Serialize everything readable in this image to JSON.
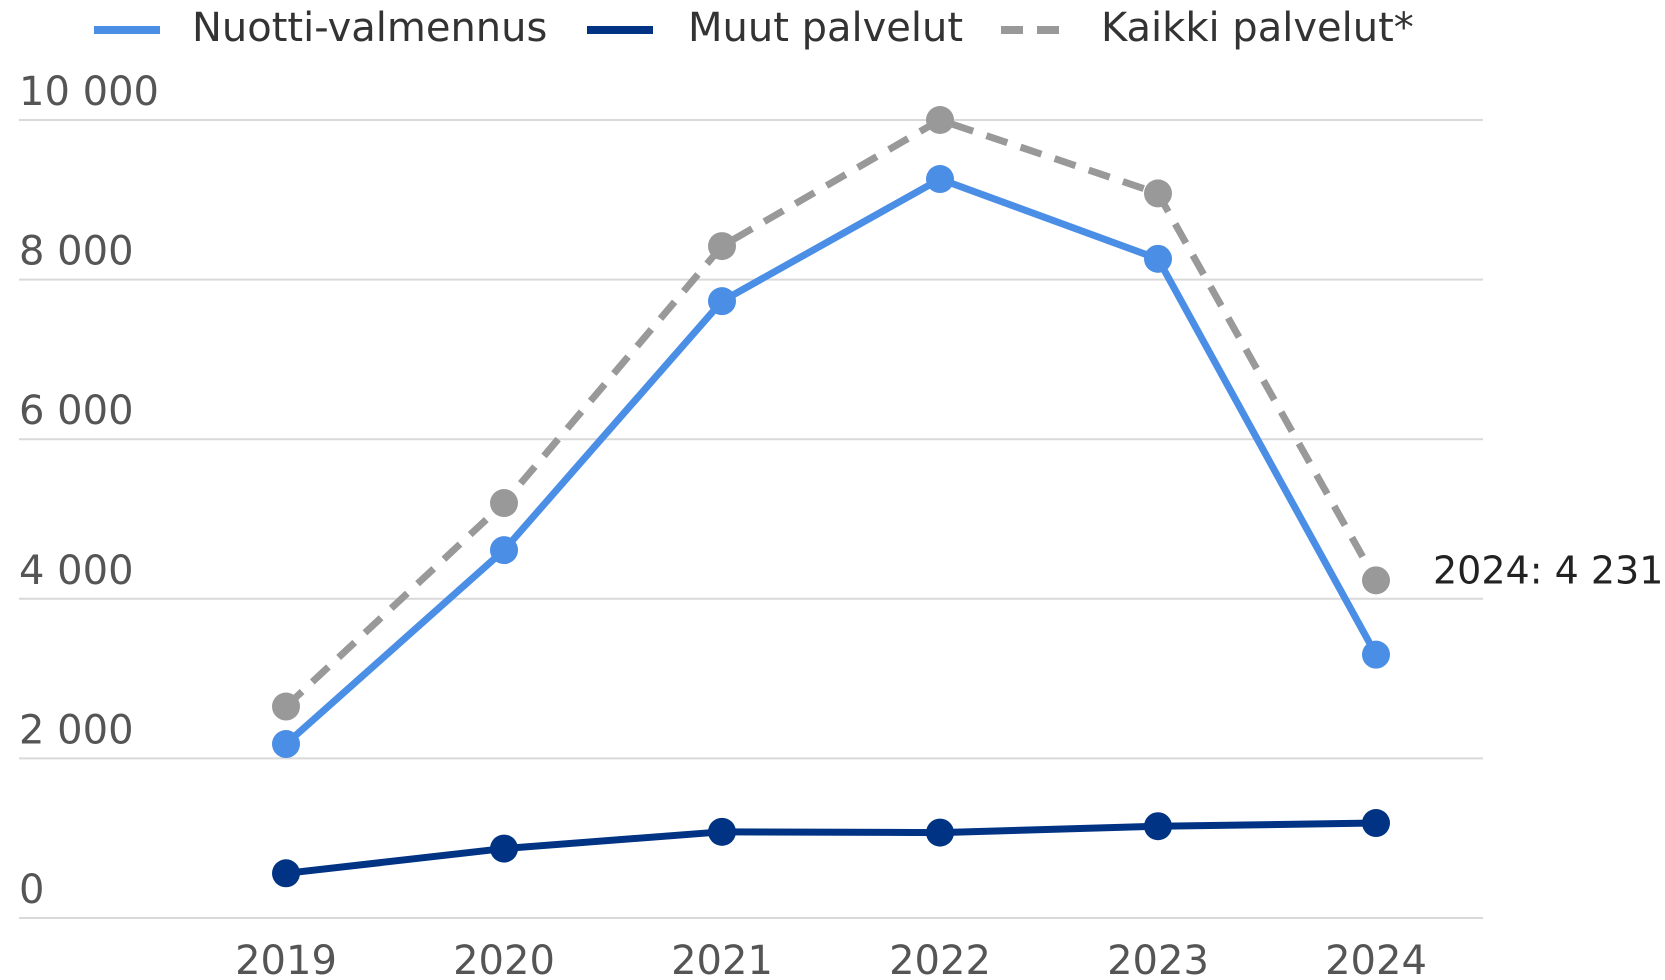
{
  "chart_data": {
    "type": "line",
    "categories": [
      "2019",
      "2020",
      "2021",
      "2022",
      "2023",
      "2024"
    ],
    "series": [
      {
        "name": "Nuotti-valmennus",
        "color": "#4a8ee6",
        "line_style": "solid",
        "values": [
          2180,
          4610,
          7730,
          9260,
          8260,
          3300
        ]
      },
      {
        "name": "Muut palvelut",
        "color": "#003383",
        "line_style": "solid",
        "values": [
          560,
          870,
          1080,
          1070,
          1150,
          1190
        ]
      },
      {
        "name": "Kaikki palvelut*",
        "color": "#999999",
        "line_style": "dashed",
        "values": [
          2650,
          5200,
          8420,
          10000,
          9080,
          4231
        ]
      }
    ],
    "annotation": "2024: 4 231",
    "ylim": [
      0,
      10000
    ],
    "yticks": [
      0,
      {
        "value": 2000,
        "label": "2 000"
      },
      {
        "value": 4000,
        "label": "4 000"
      },
      {
        "value": 6000,
        "label": "6 000"
      },
      {
        "value": 8000,
        "label": "8 000"
      },
      {
        "value": 10000,
        "label": "10 000"
      }
    ],
    "grid": true
  }
}
